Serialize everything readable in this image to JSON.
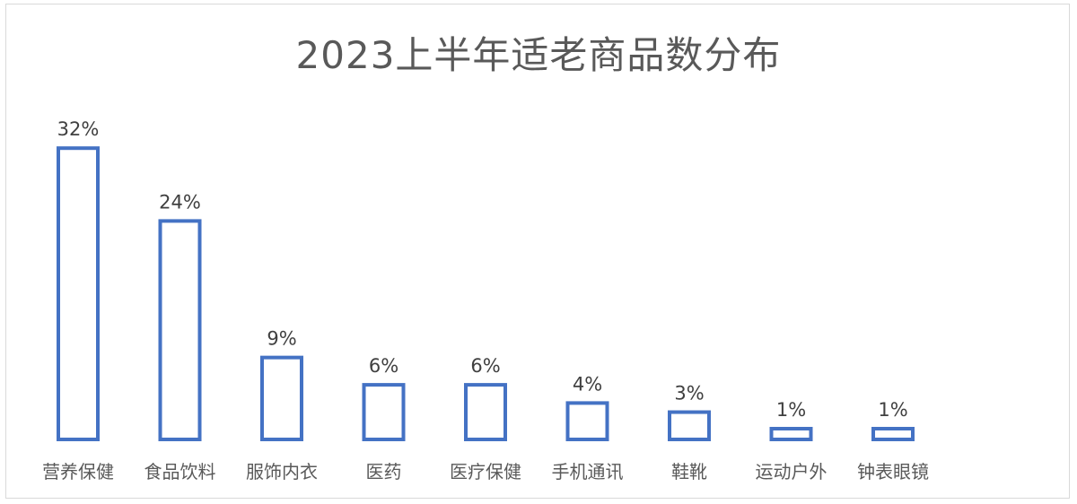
{
  "chart_data": {
    "type": "bar",
    "title": "2023上半年适老商品数分布",
    "categories": [
      "营养保健",
      "食品饮料",
      "服饰内衣",
      "医药",
      "医疗保健",
      "手机通讯",
      "鞋靴",
      "运动户外",
      "钟表眼镜"
    ],
    "values": [
      32,
      24,
      9,
      6,
      6,
      4,
      3,
      1,
      1
    ],
    "labels": [
      "32%",
      "24%",
      "9%",
      "6%",
      "6%",
      "4%",
      "3%",
      "1%",
      "1%"
    ],
    "unit": "%",
    "xlabel": "",
    "ylabel": "",
    "ylim": [
      0,
      32
    ],
    "grid": false,
    "legend": "none",
    "colors": {
      "bar_outline": "#4472c4",
      "bar_fill": "#ffffff",
      "title": "#595959",
      "label": "#404040"
    }
  }
}
